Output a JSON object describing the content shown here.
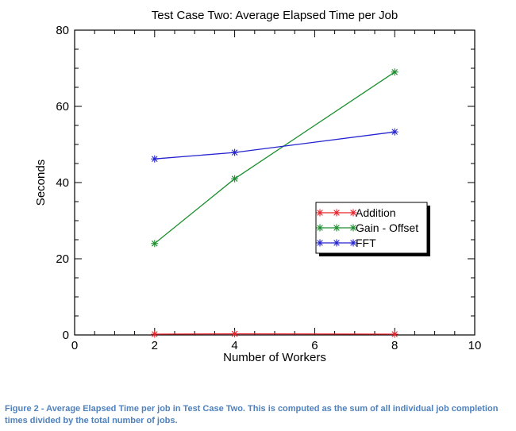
{
  "chart_data": {
    "type": "line",
    "title": "Test Case Two: Average Elapsed Time per Job",
    "xlabel": "Number of Workers",
    "ylabel": "Seconds",
    "xlim": [
      0,
      10
    ],
    "ylim": [
      0,
      80
    ],
    "xticks": [
      0,
      2,
      4,
      6,
      8,
      10
    ],
    "yticks": [
      0,
      20,
      40,
      60,
      80
    ],
    "x": [
      2,
      4,
      8
    ],
    "grid": false,
    "legend_position": "center-right",
    "series": [
      {
        "name": "Addition",
        "color": "#e8202a",
        "values": [
          0.2,
          0.3,
          0.2
        ]
      },
      {
        "name": "Gain - Offset",
        "color": "#1b8e2e",
        "values": [
          24,
          41,
          69
        ]
      },
      {
        "name": "FFT",
        "color": "#2323d0",
        "values": [
          46.2,
          47.9,
          53.3
        ]
      }
    ]
  },
  "caption": "Figure 2 - Average Elapsed Time per job in Test Case Two. This is computed as the sum of all individual job completion times divided by the total number of jobs."
}
